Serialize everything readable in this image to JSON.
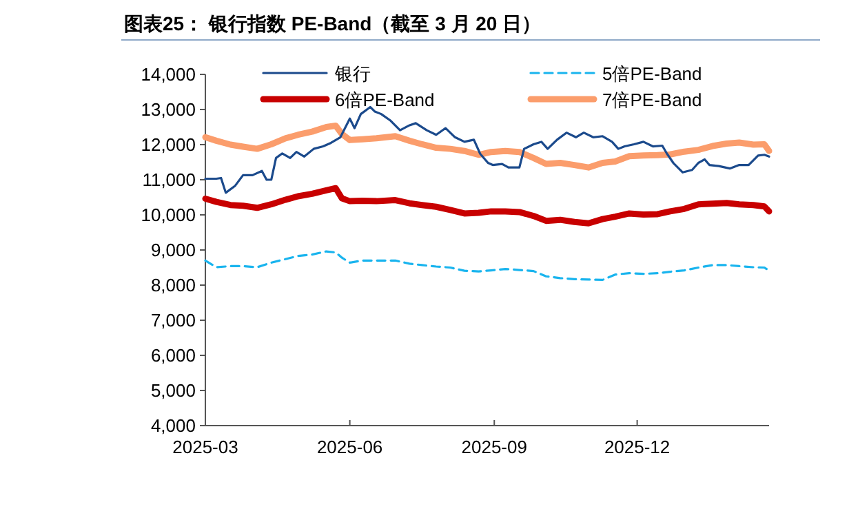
{
  "chart_data": {
    "type": "line",
    "title": "图表25：  银行指数 PE-Band（截至 3 月 20 日）",
    "xlim": [
      "2025-03-01",
      "2026-02-23"
    ],
    "xticks": [
      {
        "value": "2025-03-01",
        "label": "2025-03"
      },
      {
        "value": "2025-06-01",
        "label": "2025-06"
      },
      {
        "value": "2025-09-01",
        "label": "2025-09"
      },
      {
        "value": "2025-12-01",
        "label": "2025-12"
      }
    ],
    "ylim": [
      4000,
      14000
    ],
    "yticks": [
      {
        "value": 4000,
        "label": "4,000"
      },
      {
        "value": 5000,
        "label": "5,000"
      },
      {
        "value": 6000,
        "label": "6,000"
      },
      {
        "value": 7000,
        "label": "7,000"
      },
      {
        "value": 8000,
        "label": "8,000"
      },
      {
        "value": 9000,
        "label": "9,000"
      },
      {
        "value": 10000,
        "label": "10,000"
      },
      {
        "value": 11000,
        "label": "11,000"
      },
      {
        "value": 12000,
        "label": "12,000"
      },
      {
        "value": 13000,
        "label": "13,000"
      },
      {
        "value": 14000,
        "label": "14,000"
      }
    ],
    "grid": false,
    "legend": "top",
    "marker": "none",
    "series": [
      {
        "name": "银行",
        "color": "#1b4a8c",
        "line_style": "solid",
        "x": [
          "2025-03-01",
          "2025-03-08",
          "2025-03-11",
          "2025-03-14",
          "2025-03-20",
          "2025-03-25",
          "2025-03-31",
          "2025-04-06",
          "2025-04-09",
          "2025-04-12",
          "2025-04-15",
          "2025-04-19",
          "2025-04-24",
          "2025-04-28",
          "2025-05-03",
          "2025-05-09",
          "2025-05-15",
          "2025-05-20",
          "2025-05-26",
          "2025-06-01",
          "2025-06-04",
          "2025-06-08",
          "2025-06-14",
          "2025-06-17",
          "2025-06-21",
          "2025-06-27",
          "2025-07-03",
          "2025-07-09",
          "2025-07-13",
          "2025-07-20",
          "2025-07-26",
          "2025-08-01",
          "2025-08-07",
          "2025-08-13",
          "2025-08-19",
          "2025-08-23",
          "2025-08-28",
          "2025-08-31",
          "2025-09-06",
          "2025-09-10",
          "2025-09-17",
          "2025-09-20",
          "2025-09-26",
          "2025-10-01",
          "2025-10-05",
          "2025-10-11",
          "2025-10-17",
          "2025-10-23",
          "2025-10-28",
          "2025-11-03",
          "2025-11-09",
          "2025-11-15",
          "2025-11-19",
          "2025-11-23",
          "2025-11-29",
          "2025-12-05",
          "2025-12-11",
          "2025-12-17",
          "2025-12-20",
          "2025-12-24",
          "2025-12-30",
          "2026-01-05",
          "2026-01-09",
          "2026-01-13",
          "2026-01-16",
          "2026-01-22",
          "2026-01-29",
          "2026-02-04",
          "2026-02-10",
          "2026-02-16",
          "2026-02-20",
          "2026-02-23"
        ],
        "values": [
          11030,
          11030,
          11050,
          10630,
          10830,
          11130,
          11130,
          11250,
          11000,
          11000,
          11620,
          11750,
          11620,
          11790,
          11660,
          11880,
          11950,
          12050,
          12210,
          12740,
          12470,
          12870,
          13070,
          12940,
          12870,
          12680,
          12410,
          12550,
          12610,
          12410,
          12280,
          12470,
          12210,
          12080,
          12140,
          11740,
          11480,
          11420,
          11450,
          11350,
          11350,
          11880,
          12010,
          12080,
          11880,
          12140,
          12340,
          12210,
          12340,
          12210,
          12240,
          12080,
          11880,
          11950,
          12010,
          12080,
          11950,
          11970,
          11740,
          11480,
          11210,
          11280,
          11480,
          11580,
          11420,
          11390,
          11320,
          11420,
          11420,
          11690,
          11710,
          11660
        ]
      },
      {
        "name": "5倍PE-Band",
        "color": "#19b4ee",
        "line_style": "dashed",
        "values": [
          8700,
          8510,
          8540,
          8540,
          8510,
          8640,
          8740,
          8830,
          8870,
          8960,
          8930,
          8780,
          8640,
          8700,
          8700,
          8700,
          8610,
          8570,
          8530,
          8500,
          8410,
          8390,
          8420,
          8460,
          8430,
          8400,
          8250,
          8200,
          8170,
          8160,
          8150,
          8300,
          8340,
          8320,
          8340,
          8380,
          8420,
          8500,
          8570,
          8570,
          8540,
          8510,
          8500,
          8410
        ]
      },
      {
        "name": "6倍PE-Band",
        "color": "#c80000",
        "line_style": "solid",
        "values": [
          10460,
          10370,
          10280,
          10260,
          10200,
          10300,
          10430,
          10530,
          10600,
          10700,
          10760,
          10470,
          10390,
          10400,
          10390,
          10420,
          10330,
          10280,
          10230,
          10140,
          10040,
          10060,
          10100,
          10100,
          10080,
          9970,
          9830,
          9860,
          9800,
          9760,
          9880,
          9950,
          10040,
          10010,
          10020,
          10100,
          10170,
          10300,
          10320,
          10340,
          10300,
          10280,
          10240,
          10100
        ]
      },
      {
        "name": "7倍PE-Band",
        "color": "#fb9d6c",
        "line_style": "solid",
        "values": [
          12210,
          12110,
          12000,
          11940,
          11880,
          12010,
          12180,
          12280,
          12370,
          12500,
          12540,
          12300,
          12130,
          12150,
          12180,
          12240,
          12110,
          12010,
          11910,
          11880,
          11820,
          11710,
          11790,
          11820,
          11790,
          11620,
          11450,
          11480,
          11420,
          11350,
          11480,
          11520,
          11670,
          11690,
          11700,
          11720,
          11800,
          11850,
          11960,
          12030,
          12060,
          12000,
          12010,
          11820
        ]
      }
    ],
    "x": [
      "2025-03-01",
      "2025-03-08",
      "2025-03-17",
      "2025-03-25",
      "2025-04-03",
      "2025-04-12",
      "2025-04-21",
      "2025-04-29",
      "2025-05-08",
      "2025-05-17",
      "2025-05-23",
      "2025-05-27",
      "2025-06-01",
      "2025-06-09",
      "2025-06-18",
      "2025-06-30",
      "2025-07-09",
      "2025-07-17",
      "2025-07-26",
      "2025-08-04",
      "2025-08-13",
      "2025-08-22",
      "2025-08-30",
      "2025-09-08",
      "2025-09-17",
      "2025-09-26",
      "2025-10-04",
      "2025-10-13",
      "2025-10-22",
      "2025-10-31",
      "2025-11-09",
      "2025-11-17",
      "2025-11-26",
      "2025-12-05",
      "2025-12-14",
      "2025-12-22",
      "2025-12-31",
      "2026-01-09",
      "2026-01-18",
      "2026-01-27",
      "2026-02-04",
      "2026-02-13",
      "2026-02-20",
      "2026-02-23"
    ]
  }
}
